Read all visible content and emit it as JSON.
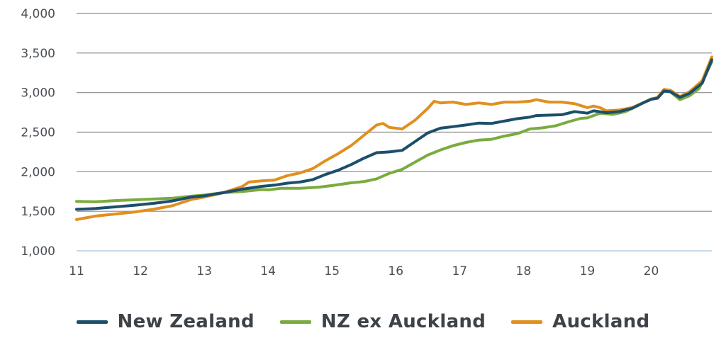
{
  "chart_data": {
    "type": "line",
    "title": "",
    "xlabel": "",
    "ylabel": "",
    "xlim": [
      11,
      20.95
    ],
    "ylim": [
      1000,
      4000
    ],
    "x_ticks": [
      "11",
      "12",
      "13",
      "14",
      "15",
      "16",
      "17",
      "18",
      "19",
      "20"
    ],
    "y_ticks": [
      "1,000",
      "1,500",
      "2,000",
      "2,500",
      "3,000",
      "3,500",
      "4,000"
    ],
    "grid": "horizontal",
    "legend_position": "bottom",
    "series": [
      {
        "name": "NZ ex Auckland",
        "color": "#7aab3f",
        "points": [
          [
            11.0,
            1625
          ],
          [
            11.3,
            1620
          ],
          [
            11.6,
            1635
          ],
          [
            11.9,
            1645
          ],
          [
            12.2,
            1655
          ],
          [
            12.5,
            1665
          ],
          [
            12.8,
            1690
          ],
          [
            13.0,
            1705
          ],
          [
            13.3,
            1735
          ],
          [
            13.6,
            1750
          ],
          [
            13.9,
            1775
          ],
          [
            14.0,
            1770
          ],
          [
            14.2,
            1790
          ],
          [
            14.5,
            1790
          ],
          [
            14.8,
            1805
          ],
          [
            15.0,
            1825
          ],
          [
            15.3,
            1860
          ],
          [
            15.5,
            1875
          ],
          [
            15.7,
            1910
          ],
          [
            15.9,
            1980
          ],
          [
            16.1,
            2030
          ],
          [
            16.3,
            2120
          ],
          [
            16.5,
            2210
          ],
          [
            16.7,
            2275
          ],
          [
            16.9,
            2330
          ],
          [
            17.1,
            2370
          ],
          [
            17.3,
            2400
          ],
          [
            17.5,
            2410
          ],
          [
            17.7,
            2450
          ],
          [
            17.9,
            2480
          ],
          [
            18.1,
            2540
          ],
          [
            18.3,
            2555
          ],
          [
            18.5,
            2580
          ],
          [
            18.7,
            2630
          ],
          [
            18.9,
            2675
          ],
          [
            19.0,
            2680
          ],
          [
            19.2,
            2740
          ],
          [
            19.4,
            2725
          ],
          [
            19.6,
            2760
          ],
          [
            19.8,
            2840
          ],
          [
            20.0,
            2920
          ],
          [
            20.1,
            2935
          ],
          [
            20.2,
            3020
          ],
          [
            20.3,
            3010
          ],
          [
            20.45,
            2910
          ],
          [
            20.6,
            2960
          ],
          [
            20.75,
            3050
          ],
          [
            20.95,
            3390
          ]
        ]
      },
      {
        "name": "Auckland",
        "color": "#e0901f",
        "points": [
          [
            11.0,
            1395
          ],
          [
            11.3,
            1440
          ],
          [
            11.6,
            1465
          ],
          [
            11.9,
            1490
          ],
          [
            12.2,
            1525
          ],
          [
            12.5,
            1570
          ],
          [
            12.8,
            1650
          ],
          [
            13.0,
            1680
          ],
          [
            13.3,
            1735
          ],
          [
            13.6,
            1815
          ],
          [
            13.7,
            1870
          ],
          [
            13.9,
            1885
          ],
          [
            14.1,
            1895
          ],
          [
            14.3,
            1950
          ],
          [
            14.5,
            1985
          ],
          [
            14.7,
            2040
          ],
          [
            14.9,
            2140
          ],
          [
            15.1,
            2230
          ],
          [
            15.3,
            2330
          ],
          [
            15.5,
            2460
          ],
          [
            15.7,
            2590
          ],
          [
            15.8,
            2610
          ],
          [
            15.9,
            2560
          ],
          [
            16.1,
            2540
          ],
          [
            16.3,
            2650
          ],
          [
            16.5,
            2800
          ],
          [
            16.6,
            2890
          ],
          [
            16.7,
            2870
          ],
          [
            16.9,
            2880
          ],
          [
            17.1,
            2850
          ],
          [
            17.3,
            2870
          ],
          [
            17.5,
            2850
          ],
          [
            17.7,
            2880
          ],
          [
            17.9,
            2880
          ],
          [
            18.1,
            2890
          ],
          [
            18.2,
            2910
          ],
          [
            18.4,
            2880
          ],
          [
            18.6,
            2880
          ],
          [
            18.8,
            2860
          ],
          [
            19.0,
            2810
          ],
          [
            19.1,
            2830
          ],
          [
            19.2,
            2810
          ],
          [
            19.3,
            2770
          ],
          [
            19.5,
            2780
          ],
          [
            19.7,
            2810
          ],
          [
            19.9,
            2880
          ],
          [
            20.0,
            2915
          ],
          [
            20.1,
            2940
          ],
          [
            20.2,
            3040
          ],
          [
            20.3,
            3030
          ],
          [
            20.45,
            2950
          ],
          [
            20.6,
            3010
          ],
          [
            20.8,
            3150
          ],
          [
            20.95,
            3450
          ]
        ]
      },
      {
        "name": "New Zealand",
        "color": "#1c4f6b",
        "points": [
          [
            11.0,
            1525
          ],
          [
            11.3,
            1535
          ],
          [
            11.6,
            1555
          ],
          [
            11.9,
            1575
          ],
          [
            12.2,
            1600
          ],
          [
            12.5,
            1630
          ],
          [
            12.8,
            1680
          ],
          [
            13.0,
            1695
          ],
          [
            13.3,
            1735
          ],
          [
            13.6,
            1780
          ],
          [
            13.9,
            1815
          ],
          [
            14.1,
            1830
          ],
          [
            14.3,
            1855
          ],
          [
            14.5,
            1870
          ],
          [
            14.7,
            1900
          ],
          [
            14.9,
            1965
          ],
          [
            15.1,
            2020
          ],
          [
            15.3,
            2090
          ],
          [
            15.5,
            2170
          ],
          [
            15.7,
            2240
          ],
          [
            15.9,
            2250
          ],
          [
            16.1,
            2270
          ],
          [
            16.3,
            2380
          ],
          [
            16.5,
            2490
          ],
          [
            16.7,
            2550
          ],
          [
            16.9,
            2570
          ],
          [
            17.1,
            2590
          ],
          [
            17.3,
            2615
          ],
          [
            17.5,
            2610
          ],
          [
            17.7,
            2640
          ],
          [
            17.9,
            2670
          ],
          [
            18.1,
            2690
          ],
          [
            18.2,
            2710
          ],
          [
            18.4,
            2715
          ],
          [
            18.6,
            2720
          ],
          [
            18.8,
            2760
          ],
          [
            19.0,
            2740
          ],
          [
            19.1,
            2770
          ],
          [
            19.3,
            2745
          ],
          [
            19.5,
            2760
          ],
          [
            19.7,
            2800
          ],
          [
            19.9,
            2880
          ],
          [
            20.0,
            2915
          ],
          [
            20.1,
            2930
          ],
          [
            20.2,
            3020
          ],
          [
            20.3,
            3010
          ],
          [
            20.45,
            2940
          ],
          [
            20.6,
            2990
          ],
          [
            20.8,
            3120
          ],
          [
            20.95,
            3415
          ]
        ]
      }
    ]
  },
  "legend": [
    {
      "label": "New Zealand",
      "color": "#1c4f6b"
    },
    {
      "label": "NZ ex Auckland",
      "color": "#7aab3f"
    },
    {
      "label": "Auckland",
      "color": "#e0901f"
    }
  ]
}
